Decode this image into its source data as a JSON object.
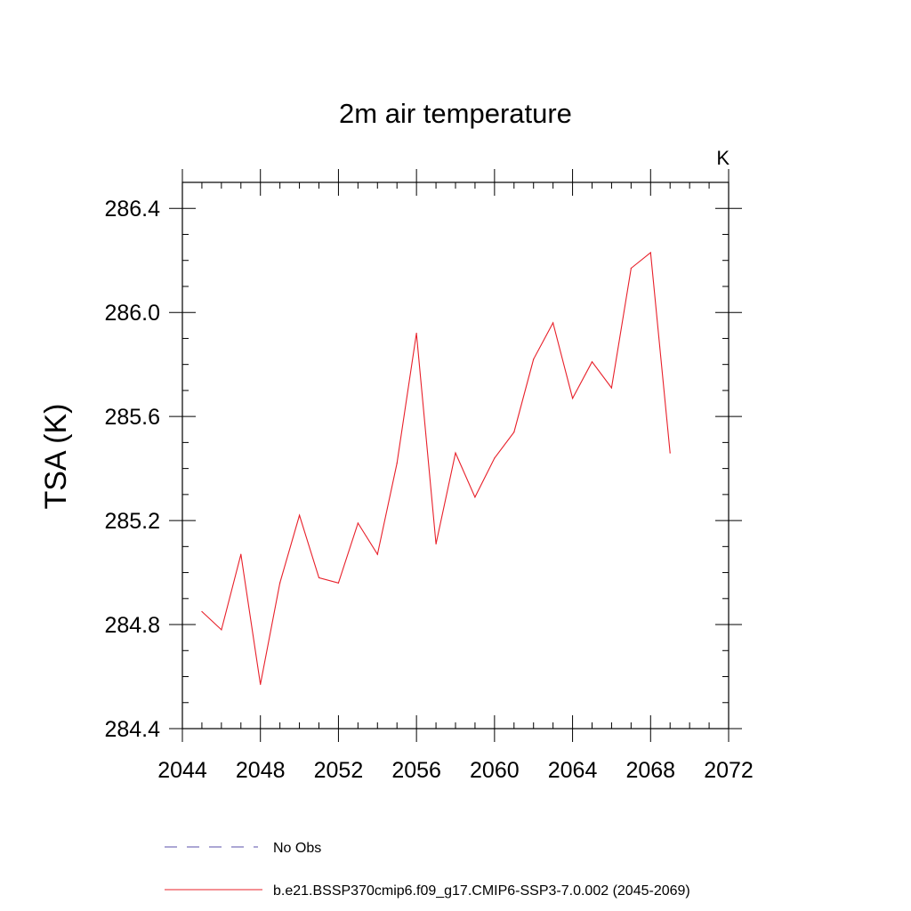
{
  "chart_data": {
    "type": "line",
    "title": "2m air temperature",
    "units_label": "K",
    "ylabel": "TSA  (K)",
    "xlabel": "",
    "xlim": [
      2044,
      2072
    ],
    "ylim": [
      284.4,
      286.5
    ],
    "x_ticks": [
      2044,
      2048,
      2052,
      2056,
      2060,
      2064,
      2068,
      2072
    ],
    "x_tick_labels": [
      "2044",
      "2048",
      "2052",
      "2056",
      "2060",
      "2064",
      "2068",
      "2072"
    ],
    "y_ticks": [
      284.4,
      284.8,
      285.2,
      285.6,
      286.0,
      286.4
    ],
    "y_tick_labels": [
      "284.4",
      "284.8",
      "285.2",
      "285.6",
      "286.0",
      "286.4"
    ],
    "grid": false,
    "legend_position": "bottom",
    "series": [
      {
        "name": "No Obs",
        "color": "#5a4fa8",
        "dash": "dashed",
        "x": [],
        "y": []
      },
      {
        "name": "b.e21.BSSP370cmip6.f09_g17.CMIP6-SSP3-7.0.002 (2045-2069)",
        "color": "#e8202a",
        "dash": "solid",
        "x": [
          2045,
          2046,
          2047,
          2048,
          2049,
          2050,
          2051,
          2052,
          2053,
          2054,
          2055,
          2056,
          2057,
          2058,
          2059,
          2060,
          2061,
          2062,
          2063,
          2064,
          2065,
          2066,
          2067,
          2068,
          2069
        ],
        "y": [
          284.85,
          284.78,
          285.07,
          284.57,
          284.96,
          285.22,
          284.98,
          284.96,
          285.19,
          285.07,
          285.42,
          285.92,
          285.11,
          285.46,
          285.29,
          285.44,
          285.54,
          285.82,
          285.96,
          285.67,
          285.81,
          285.71,
          286.17,
          286.23,
          285.46
        ]
      }
    ]
  }
}
